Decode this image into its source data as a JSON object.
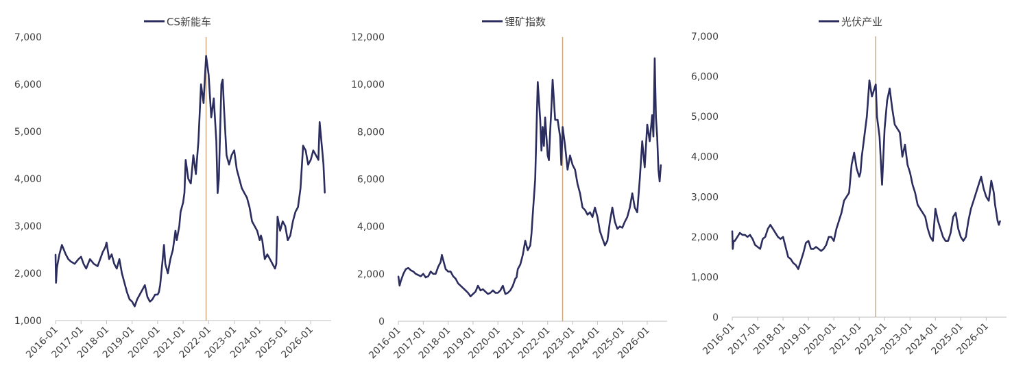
{
  "colors": {
    "line": "#2b2d5e",
    "marker": "#c9ab7f",
    "axis": "#bfbfbf",
    "text": "#404040"
  },
  "chart_data": [
    {
      "type": "line",
      "legend": "CS新能车",
      "legend_position": "top",
      "ylim": [
        1000,
        7000
      ],
      "yticks": [
        1000,
        2000,
        3000,
        4000,
        5000,
        6000,
        7000
      ],
      "ytick_labels": [
        "1,000",
        "2,000",
        "3,000",
        "4,000",
        "5,000",
        "6,000",
        "7,000"
      ],
      "xlim": [
        2016.0,
        2026.8
      ],
      "xticks": [
        2016,
        2017,
        2018,
        2019,
        2020,
        2021,
        2022,
        2023,
        2024,
        2025,
        2026
      ],
      "xtick_labels": [
        "2016-01",
        "2017-01",
        "2018-01",
        "2019-01",
        "2020-01",
        "2021-01",
        "2022-01",
        "2023-01",
        "2024-01",
        "2025-01",
        "2026-01"
      ],
      "vline": 2021.9,
      "grid": false,
      "series": [
        {
          "x": [
            2016.0,
            2016.02,
            2016.05,
            2016.08,
            2016.15,
            2016.25,
            2016.4,
            2016.5,
            2016.6,
            2016.75,
            2016.9,
            2017.0,
            2017.1,
            2017.2,
            2017.35,
            2017.5,
            2017.65,
            2017.75,
            2017.85,
            2017.95,
            2018.0,
            2018.1,
            2018.2,
            2018.3,
            2018.4,
            2018.5,
            2018.6,
            2018.7,
            2018.8,
            2018.9,
            2019.0,
            2019.1,
            2019.2,
            2019.3,
            2019.4,
            2019.5,
            2019.6,
            2019.7,
            2019.8,
            2019.9,
            2020.0,
            2020.05,
            2020.1,
            2020.2,
            2020.25,
            2020.3,
            2020.4,
            2020.5,
            2020.6,
            2020.7,
            2020.75,
            2020.85,
            2020.9,
            2021.0,
            2021.05,
            2021.1,
            2021.2,
            2021.3,
            2021.4,
            2021.5,
            2021.6,
            2021.7,
            2021.8,
            2021.85,
            2021.9,
            2022.0,
            2022.1,
            2022.2,
            2022.3,
            2022.35,
            2022.4,
            2022.5,
            2022.55,
            2022.6,
            2022.7,
            2022.8,
            2022.9,
            2023.0,
            2023.1,
            2023.2,
            2023.3,
            2023.4,
            2023.5,
            2023.6,
            2023.7,
            2023.8,
            2023.9,
            2024.0,
            2024.05,
            2024.1,
            2024.2,
            2024.3,
            2024.4,
            2024.5,
            2024.6,
            2024.65,
            2024.7,
            2024.8,
            2024.9,
            2025.0,
            2025.1,
            2025.2,
            2025.3,
            2025.4,
            2025.5,
            2025.6,
            2025.7,
            2025.8,
            2025.9,
            2026.0,
            2026.1,
            2026.2,
            2026.3,
            2026.35,
            2026.4,
            2026.45,
            2026.5,
            2026.55
          ],
          "y": [
            2400,
            1800,
            2100,
            2200,
            2400,
            2600,
            2400,
            2300,
            2250,
            2200,
            2300,
            2350,
            2200,
            2100,
            2300,
            2200,
            2150,
            2300,
            2450,
            2550,
            2650,
            2300,
            2400,
            2200,
            2100,
            2300,
            2000,
            1800,
            1600,
            1450,
            1400,
            1300,
            1450,
            1550,
            1650,
            1750,
            1500,
            1400,
            1450,
            1550,
            1550,
            1600,
            1750,
            2300,
            2600,
            2200,
            2000,
            2300,
            2500,
            2900,
            2700,
            3000,
            3300,
            3500,
            3700,
            4400,
            4000,
            3900,
            4500,
            4100,
            4800,
            6000,
            5600,
            6100,
            6600,
            6200,
            5300,
            5700,
            4800,
            3700,
            4000,
            6000,
            6100,
            5500,
            4500,
            4300,
            4500,
            4600,
            4200,
            4000,
            3800,
            3700,
            3600,
            3400,
            3100,
            3000,
            2900,
            2700,
            2800,
            2700,
            2300,
            2400,
            2300,
            2200,
            2100,
            2200,
            3200,
            2900,
            3100,
            3000,
            2700,
            2800,
            3100,
            3300,
            3400,
            3800,
            4700,
            4600,
            4300,
            4400,
            4600,
            4500,
            4400,
            5200,
            4900,
            4600,
            4300,
            3700
          ]
        }
      ]
    },
    {
      "type": "line",
      "legend": "锂矿指数",
      "legend_position": "top",
      "ylim": [
        0,
        12000
      ],
      "yticks": [
        0,
        2000,
        4000,
        6000,
        8000,
        10000,
        12000
      ],
      "ytick_labels": [
        "0",
        "2,000",
        "4,000",
        "6,000",
        "8,000",
        "10,000",
        "12,000"
      ],
      "xlim": [
        2016.0,
        2026.8
      ],
      "xticks": [
        2016,
        2017,
        2018,
        2019,
        2020,
        2021,
        2022,
        2023,
        2024,
        2025,
        2026
      ],
      "xtick_labels": [
        "2016-01",
        "2017-01",
        "2018-01",
        "2019-01",
        "2020-01",
        "2021-01",
        "2022-01",
        "2023-01",
        "2024-01",
        "2025-01",
        "2026-01"
      ],
      "vline": 2022.6,
      "grid": false,
      "series": [
        {
          "x": [
            2016.0,
            2016.05,
            2016.1,
            2016.2,
            2016.3,
            2016.4,
            2016.5,
            2016.6,
            2016.7,
            2016.8,
            2016.9,
            2017.0,
            2017.1,
            2017.2,
            2017.3,
            2017.4,
            2017.5,
            2017.6,
            2017.7,
            2017.75,
            2017.8,
            2017.9,
            2018.0,
            2018.1,
            2018.2,
            2018.3,
            2018.4,
            2018.5,
            2018.6,
            2018.7,
            2018.8,
            2018.9,
            2019.0,
            2019.1,
            2019.2,
            2019.3,
            2019.4,
            2019.5,
            2019.6,
            2019.7,
            2019.8,
            2019.9,
            2020.0,
            2020.1,
            2020.2,
            2020.3,
            2020.4,
            2020.5,
            2020.6,
            2020.7,
            2020.75,
            2020.8,
            2020.9,
            2021.0,
            2021.1,
            2021.2,
            2021.3,
            2021.35,
            2021.4,
            2021.5,
            2021.55,
            2021.6,
            2021.7,
            2021.75,
            2021.8,
            2021.85,
            2021.9,
            2022.0,
            2022.05,
            2022.1,
            2022.15,
            2022.2,
            2022.3,
            2022.4,
            2022.5,
            2022.55,
            2022.6,
            2022.7,
            2022.8,
            2022.9,
            2023.0,
            2023.1,
            2023.2,
            2023.3,
            2023.4,
            2023.5,
            2023.6,
            2023.7,
            2023.8,
            2023.9,
            2024.0,
            2024.1,
            2024.2,
            2024.3,
            2024.4,
            2024.5,
            2024.6,
            2024.7,
            2024.8,
            2024.9,
            2025.0,
            2025.1,
            2025.2,
            2025.3,
            2025.4,
            2025.5,
            2025.6,
            2025.7,
            2025.8,
            2025.9,
            2026.0,
            2026.1,
            2026.2,
            2026.25,
            2026.3,
            2026.35,
            2026.4,
            2026.45,
            2026.5,
            2026.55
          ],
          "y": [
            1900,
            1500,
            1700,
            2000,
            2200,
            2250,
            2150,
            2100,
            2000,
            1950,
            1900,
            2000,
            1850,
            1900,
            2100,
            2000,
            2000,
            2300,
            2500,
            2800,
            2600,
            2200,
            2100,
            2100,
            1900,
            1800,
            1600,
            1500,
            1400,
            1300,
            1200,
            1050,
            1150,
            1250,
            1500,
            1300,
            1350,
            1250,
            1150,
            1200,
            1300,
            1200,
            1200,
            1300,
            1500,
            1150,
            1200,
            1300,
            1500,
            1800,
            1850,
            2200,
            2400,
            2800,
            3400,
            3000,
            3200,
            3700,
            4500,
            6000,
            8000,
            10100,
            8500,
            7200,
            8200,
            7400,
            8600,
            7000,
            6800,
            8000,
            9000,
            10200,
            8500,
            8500,
            7800,
            6600,
            8200,
            7400,
            6400,
            7000,
            6600,
            6400,
            5800,
            5400,
            4800,
            4700,
            4500,
            4600,
            4400,
            4800,
            4400,
            3800,
            3500,
            3200,
            3400,
            4200,
            4800,
            4200,
            3900,
            4000,
            3950,
            4200,
            4400,
            4800,
            5400,
            4800,
            4600,
            6000,
            7600,
            6500,
            8300,
            7600,
            8700,
            7800,
            11100,
            8600,
            7800,
            6400,
            5900,
            6600
          ]
        }
      ]
    },
    {
      "type": "line",
      "legend": "光伏产业",
      "legend_position": "top",
      "ylim": [
        0,
        7000
      ],
      "yticks": [
        0,
        1000,
        2000,
        3000,
        4000,
        5000,
        6000,
        7000
      ],
      "ytick_labels": [
        "0",
        "1,000",
        "2,000",
        "3,000",
        "4,000",
        "5,000",
        "6,000",
        "7,000"
      ],
      "xlim": [
        2016.0,
        2026.8
      ],
      "xticks": [
        2016,
        2017,
        2018,
        2019,
        2020,
        2021,
        2022,
        2023,
        2024,
        2025,
        2026
      ],
      "xtick_labels": [
        "2016-01",
        "2017-01",
        "2018-01",
        "2019-01",
        "2020-01",
        "2021-01",
        "2022-01",
        "2023-01",
        "2024-01",
        "2025-01",
        "2026-01"
      ],
      "vline": 2021.65,
      "grid": false,
      "series": [
        {
          "x": [
            2016.0,
            2016.02,
            2016.05,
            2016.1,
            2016.2,
            2016.3,
            2016.4,
            2016.5,
            2016.6,
            2016.7,
            2016.8,
            2016.9,
            2017.0,
            2017.1,
            2017.2,
            2017.3,
            2017.4,
            2017.5,
            2017.6,
            2017.7,
            2017.8,
            2017.9,
            2018.0,
            2018.1,
            2018.2,
            2018.3,
            2018.4,
            2018.5,
            2018.6,
            2018.7,
            2018.8,
            2018.9,
            2019.0,
            2019.1,
            2019.2,
            2019.3,
            2019.4,
            2019.5,
            2019.6,
            2019.7,
            2019.8,
            2019.9,
            2020.0,
            2020.1,
            2020.2,
            2020.3,
            2020.4,
            2020.5,
            2020.6,
            2020.7,
            2020.8,
            2020.9,
            2021.0,
            2021.05,
            2021.1,
            2021.2,
            2021.3,
            2021.4,
            2021.5,
            2021.6,
            2021.65,
            2021.7,
            2021.8,
            2021.9,
            2022.0,
            2022.1,
            2022.2,
            2022.3,
            2022.4,
            2022.5,
            2022.6,
            2022.7,
            2022.8,
            2022.9,
            2023.0,
            2023.1,
            2023.2,
            2023.3,
            2023.4,
            2023.5,
            2023.6,
            2023.7,
            2023.8,
            2023.9,
            2024.0,
            2024.1,
            2024.2,
            2024.3,
            2024.4,
            2024.5,
            2024.6,
            2024.7,
            2024.8,
            2024.9,
            2025.0,
            2025.1,
            2025.2,
            2025.3,
            2025.4,
            2025.5,
            2025.6,
            2025.7,
            2025.8,
            2025.9,
            2026.0,
            2026.1,
            2026.2,
            2026.3,
            2026.35,
            2026.4,
            2026.45,
            2026.5,
            2026.55
          ],
          "y": [
            2150,
            1700,
            1900,
            1900,
            2000,
            2100,
            2050,
            2050,
            2000,
            2050,
            1950,
            1800,
            1750,
            1700,
            1950,
            2000,
            2200,
            2300,
            2200,
            2100,
            2000,
            1950,
            2000,
            1750,
            1500,
            1450,
            1350,
            1300,
            1200,
            1400,
            1600,
            1850,
            1900,
            1700,
            1700,
            1750,
            1700,
            1650,
            1700,
            1800,
            2000,
            2000,
            1900,
            2200,
            2400,
            2600,
            2900,
            3000,
            3100,
            3800,
            4100,
            3700,
            3500,
            3600,
            4000,
            4500,
            5000,
            5900,
            5500,
            5700,
            5800,
            5000,
            4500,
            3300,
            4700,
            5400,
            5700,
            5200,
            4800,
            4700,
            4600,
            4000,
            4300,
            3800,
            3600,
            3300,
            3100,
            2800,
            2700,
            2600,
            2500,
            2200,
            2000,
            1900,
            2700,
            2400,
            2200,
            2000,
            1900,
            1900,
            2100,
            2500,
            2600,
            2200,
            2000,
            1900,
            2000,
            2400,
            2700,
            2900,
            3100,
            3300,
            3500,
            3200,
            3000,
            2900,
            3400,
            3100,
            2800,
            2600,
            2400,
            2300,
            2400
          ]
        }
      ]
    }
  ]
}
